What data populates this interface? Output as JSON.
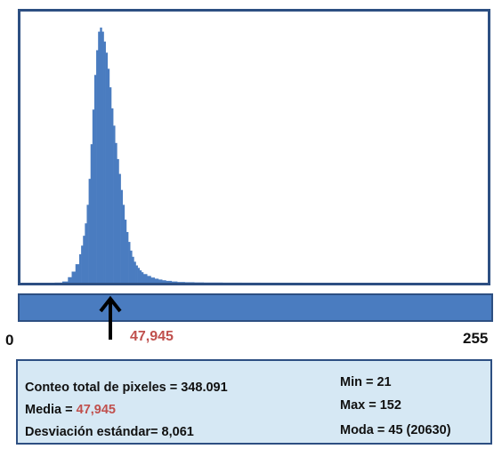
{
  "chart_data": {
    "type": "bar",
    "x": [
      21,
      25,
      28,
      30,
      32,
      34,
      35,
      36,
      37,
      38,
      39,
      40,
      41,
      42,
      43,
      44,
      45,
      46,
      47,
      48,
      49,
      50,
      51,
      52,
      53,
      54,
      55,
      56,
      57,
      58,
      59,
      60,
      61,
      62,
      63,
      64,
      65,
      66,
      67,
      68,
      70,
      72,
      74,
      76,
      78,
      80,
      83,
      86,
      90,
      95,
      100,
      110,
      120,
      130,
      140,
      152
    ],
    "values": [
      10,
      100,
      450,
      900,
      1500,
      2300,
      3000,
      3800,
      4800,
      6300,
      8400,
      11200,
      14000,
      16800,
      18800,
      20300,
      20630,
      20300,
      19500,
      18600,
      17300,
      15800,
      14100,
      12700,
      11300,
      10000,
      8800,
      7500,
      6300,
      5100,
      4100,
      3300,
      2600,
      2100,
      1700,
      1400,
      1200,
      1000,
      850,
      700,
      550,
      420,
      330,
      260,
      200,
      150,
      100,
      60,
      40,
      25,
      15,
      8,
      5,
      3,
      2,
      1
    ],
    "xlim": [
      0,
      255
    ],
    "xtick_labels": [
      "0",
      "255"
    ],
    "color": "#4a7cc0",
    "mean_marker": "47,945"
  },
  "stats": {
    "total_label": "Conteo total de pixeles = 348.091",
    "mean_prefix": "Media = ",
    "mean_value": "47,945",
    "std_label": "Desviación estándar= 8,061",
    "min_label": "Min = 21",
    "max_label": "Max = 152",
    "mode_label": "Moda = 45 (20630)"
  },
  "colors": {
    "frame": "#2d4f82",
    "bars": "#4a7cc0",
    "highlight": "#c0504d",
    "panel": "#d6e8f4"
  }
}
